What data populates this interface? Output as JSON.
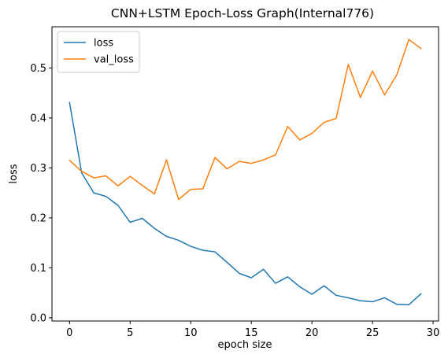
{
  "chart_data": {
    "type": "line",
    "title": "CNN+LSTM Epoch-Loss Graph(Internal776)",
    "xlabel": "epoch size",
    "ylabel": "loss",
    "xlim": [
      -1.45,
      30.45
    ],
    "ylim": [
      -0.0065,
      0.5825
    ],
    "xticks": [
      0,
      5,
      10,
      15,
      20,
      25,
      30
    ],
    "xtick_labels": [
      "0",
      "5",
      "10",
      "15",
      "20",
      "25",
      "30"
    ],
    "yticks": [
      0.0,
      0.1,
      0.2,
      0.3,
      0.4,
      0.5
    ],
    "ytick_labels": [
      "0.0",
      "0.1",
      "0.2",
      "0.3",
      "0.4",
      "0.5"
    ],
    "grid": false,
    "legend_position": "top-left",
    "x": [
      0,
      1,
      2,
      3,
      4,
      5,
      6,
      7,
      8,
      9,
      10,
      11,
      12,
      13,
      14,
      15,
      16,
      17,
      18,
      19,
      20,
      21,
      22,
      23,
      24,
      25,
      26,
      27,
      28,
      29
    ],
    "series": [
      {
        "name": "loss",
        "color": "#1f77b4",
        "values": [
          0.431,
          0.29,
          0.25,
          0.243,
          0.225,
          0.191,
          0.199,
          0.179,
          0.163,
          0.155,
          0.143,
          0.135,
          0.132,
          0.111,
          0.089,
          0.08,
          0.097,
          0.069,
          0.082,
          0.062,
          0.047,
          0.064,
          0.045,
          0.04,
          0.034,
          0.032,
          0.04,
          0.027,
          0.026,
          0.048
        ]
      },
      {
        "name": "val_loss",
        "color": "#ff7f0e",
        "values": [
          0.315,
          0.293,
          0.28,
          0.284,
          0.264,
          0.283,
          0.265,
          0.248,
          0.316,
          0.237,
          0.257,
          0.258,
          0.321,
          0.298,
          0.313,
          0.309,
          0.316,
          0.326,
          0.383,
          0.356,
          0.369,
          0.391,
          0.399,
          0.507,
          0.441,
          0.494,
          0.446,
          0.486,
          0.557,
          0.539
        ]
      }
    ]
  }
}
